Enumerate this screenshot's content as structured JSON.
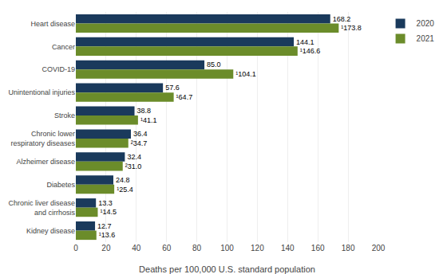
{
  "chart_data": {
    "type": "bar",
    "orientation": "horizontal",
    "categories": [
      "Heart disease",
      "Cancer",
      "COVID-19",
      "Unintentional injuries",
      "Stroke",
      "Chronic lower\nrespiratory diseases",
      "Alzheimer disease",
      "Diabetes",
      "Chronic liver disease\nand cirrhosis",
      "Kidney disease"
    ],
    "series": [
      {
        "name": "2020",
        "color": "#1a3a5c",
        "values": [
          168.2,
          144.1,
          85.0,
          57.6,
          38.8,
          36.4,
          32.4,
          24.8,
          13.3,
          12.7
        ],
        "value_labels": [
          "168.2",
          "144.1",
          "85.0",
          "57.6",
          "38.8",
          "36.4",
          "32.4",
          "24.8",
          "13.3",
          "12.7"
        ]
      },
      {
        "name": "2021",
        "color": "#6b8c2a",
        "values": [
          173.8,
          146.6,
          104.1,
          64.7,
          41.1,
          34.7,
          31.0,
          25.4,
          14.5,
          13.6
        ],
        "value_labels": [
          "¹173.8",
          "¹146.6",
          "¹104.1",
          "¹64.7",
          "¹41.1",
          "²34.7",
          "²31.0",
          "¹25.4",
          "¹14.5",
          "¹13.6"
        ]
      }
    ],
    "xlabel": "Deaths per 100,000 U.S. standard population",
    "xlim": [
      0,
      200
    ],
    "xticks": [
      0,
      20,
      40,
      60,
      80,
      100,
      120,
      140,
      160,
      180,
      200
    ],
    "grid": true,
    "data_labels": true,
    "legend": "upper right"
  }
}
